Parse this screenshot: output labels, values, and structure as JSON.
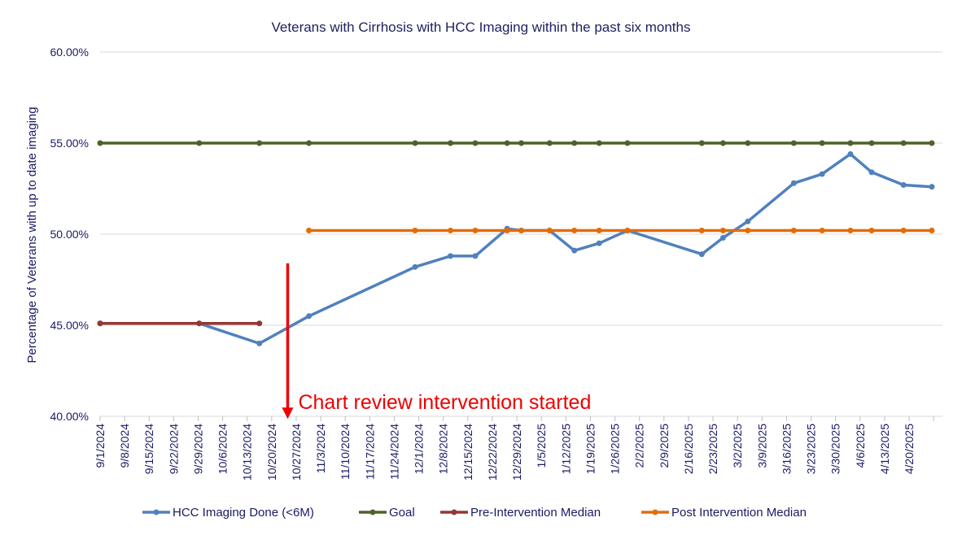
{
  "chart_data": {
    "type": "line",
    "title": "Veterans with Cirrhosis with HCC Imaging within the past six months",
    "xlabel": "",
    "ylabel": "Percentage of Veterans with up to date imaging",
    "ylim": [
      0.4,
      0.6
    ],
    "yticks": [
      "40.00%",
      "45.00%",
      "50.00%",
      "55.00%",
      "60.00%"
    ],
    "ytick_values": [
      0.4,
      0.45,
      0.5,
      0.55,
      0.6
    ],
    "x_ticks": [
      "9/1/2024",
      "9/8/2024",
      "9/15/2024",
      "9/22/2024",
      "9/29/2024",
      "10/6/2024",
      "10/13/2024",
      "10/20/2024",
      "10/27/2024",
      "11/3/2024",
      "11/10/2024",
      "11/17/2024",
      "11/24/2024",
      "12/1/2024",
      "12/8/2024",
      "12/15/2024",
      "12/22/2024",
      "12/29/2024",
      "1/5/2025",
      "1/12/2025",
      "1/19/2025",
      "1/26/2025",
      "2/2/2025",
      "2/9/2025",
      "2/16/2025",
      "2/23/2025",
      "3/2/2025",
      "3/9/2025",
      "3/16/2025",
      "3/23/2025",
      "3/30/2025",
      "4/6/2025",
      "4/13/2025",
      "4/20/2025"
    ],
    "x_range": [
      "2024-09-01",
      "2025-04-27"
    ],
    "grid": "horizontal",
    "legend_position": "bottom",
    "series": [
      {
        "name": "HCC Imaging Done (<6M)",
        "color": "#4f81bd",
        "points": [
          [
            "2024-09-01",
            0.451
          ],
          [
            "2024-09-29",
            0.451
          ],
          [
            "2024-10-16",
            0.44
          ],
          [
            "2024-10-30",
            0.455
          ],
          [
            "2024-11-29",
            0.482
          ],
          [
            "2024-12-09",
            0.488
          ],
          [
            "2024-12-16",
            0.488
          ],
          [
            "2024-12-25",
            0.503
          ],
          [
            "2024-12-29",
            0.502
          ],
          [
            "2025-01-06",
            0.502
          ],
          [
            "2025-01-13",
            0.491
          ],
          [
            "2025-01-20",
            0.495
          ],
          [
            "2025-01-28",
            0.502
          ],
          [
            "2025-02-18",
            0.489
          ],
          [
            "2025-02-24",
            0.498
          ],
          [
            "2025-03-03",
            0.507
          ],
          [
            "2025-03-16",
            0.528
          ],
          [
            "2025-03-24",
            0.533
          ],
          [
            "2025-04-01",
            0.544
          ],
          [
            "2025-04-07",
            0.534
          ],
          [
            "2025-04-16",
            0.527
          ],
          [
            "2025-04-24",
            0.526
          ]
        ]
      },
      {
        "name": "Goal",
        "color": "#4f6228",
        "points": [
          [
            "2024-09-01",
            0.55
          ],
          [
            "2024-09-29",
            0.55
          ],
          [
            "2024-10-16",
            0.55
          ],
          [
            "2024-10-30",
            0.55
          ],
          [
            "2024-11-29",
            0.55
          ],
          [
            "2024-12-09",
            0.55
          ],
          [
            "2024-12-16",
            0.55
          ],
          [
            "2024-12-25",
            0.55
          ],
          [
            "2024-12-29",
            0.55
          ],
          [
            "2025-01-06",
            0.55
          ],
          [
            "2025-01-13",
            0.55
          ],
          [
            "2025-01-20",
            0.55
          ],
          [
            "2025-01-28",
            0.55
          ],
          [
            "2025-02-18",
            0.55
          ],
          [
            "2025-02-24",
            0.55
          ],
          [
            "2025-03-03",
            0.55
          ],
          [
            "2025-03-16",
            0.55
          ],
          [
            "2025-03-24",
            0.55
          ],
          [
            "2025-04-01",
            0.55
          ],
          [
            "2025-04-07",
            0.55
          ],
          [
            "2025-04-16",
            0.55
          ],
          [
            "2025-04-24",
            0.55
          ]
        ]
      },
      {
        "name": "Pre-Intervention Median",
        "color": "#953735",
        "points": [
          [
            "2024-09-01",
            0.451
          ],
          [
            "2024-09-29",
            0.451
          ],
          [
            "2024-10-16",
            0.451
          ]
        ]
      },
      {
        "name": "Post Intervention Median",
        "color": "#e36c09",
        "points": [
          [
            "2024-10-30",
            0.502
          ],
          [
            "2024-11-29",
            0.502
          ],
          [
            "2024-12-09",
            0.502
          ],
          [
            "2024-12-16",
            0.502
          ],
          [
            "2024-12-25",
            0.502
          ],
          [
            "2024-12-29",
            0.502
          ],
          [
            "2025-01-06",
            0.502
          ],
          [
            "2025-01-13",
            0.502
          ],
          [
            "2025-01-20",
            0.502
          ],
          [
            "2025-01-28",
            0.502
          ],
          [
            "2025-02-18",
            0.502
          ],
          [
            "2025-02-24",
            0.502
          ],
          [
            "2025-03-03",
            0.502
          ],
          [
            "2025-03-16",
            0.502
          ],
          [
            "2025-03-24",
            0.502
          ],
          [
            "2025-04-01",
            0.502
          ],
          [
            "2025-04-07",
            0.502
          ],
          [
            "2025-04-16",
            0.502
          ],
          [
            "2025-04-24",
            0.502
          ]
        ]
      }
    ],
    "annotation": {
      "text": "Chart review intervention started",
      "date": "2024-10-24",
      "color": "#ee0000",
      "arrow_from": 0.484,
      "arrow_to": 0.399
    }
  }
}
